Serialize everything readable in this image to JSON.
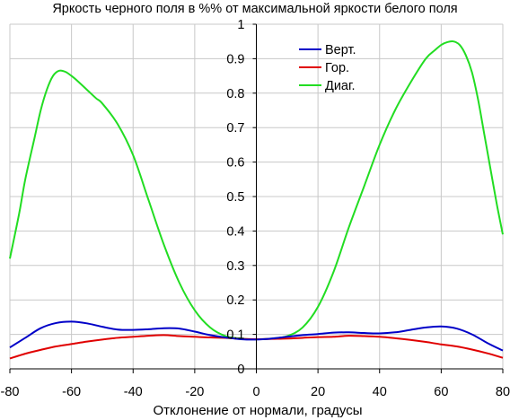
{
  "chart_data": {
    "type": "line",
    "title": "Яркость черного поля в %% от максимальной яркости белого поля",
    "xlabel": "Отклонение от нормали, градусы",
    "ylabel": "",
    "xlim": [
      -80,
      80
    ],
    "ylim": [
      0,
      1
    ],
    "x_ticks": [
      "-80",
      "-60",
      "-40",
      "-20",
      "0",
      "20",
      "40",
      "60",
      "80"
    ],
    "y_ticks": [
      "0",
      "0.1",
      "0.2",
      "0.3",
      "0.4",
      "0.5",
      "0.6",
      "0.7",
      "0.8",
      "0.9",
      "1"
    ],
    "grid": true,
    "legend": "top-center",
    "series": [
      {
        "name": "Верт.",
        "color": "#0000c8",
        "x": [
          -80,
          -75,
          -70,
          -65,
          -60,
          -55,
          -50,
          -45,
          -40,
          -35,
          -30,
          -25,
          -20,
          -15,
          -10,
          -5,
          0,
          5,
          10,
          15,
          20,
          25,
          30,
          35,
          40,
          45,
          50,
          55,
          60,
          65,
          70,
          75,
          80
        ],
        "y": [
          0.062,
          0.09,
          0.118,
          0.133,
          0.137,
          0.132,
          0.122,
          0.114,
          0.113,
          0.115,
          0.118,
          0.117,
          0.108,
          0.098,
          0.091,
          0.086,
          0.085,
          0.088,
          0.093,
          0.098,
          0.101,
          0.105,
          0.106,
          0.104,
          0.103,
          0.106,
          0.113,
          0.12,
          0.123,
          0.117,
          0.1,
          0.075,
          0.053
        ]
      },
      {
        "name": "Гор.",
        "color": "#e00000",
        "x": [
          -80,
          -75,
          -70,
          -65,
          -60,
          -55,
          -50,
          -45,
          -40,
          -35,
          -30,
          -25,
          -20,
          -15,
          -10,
          -5,
          0,
          5,
          10,
          15,
          20,
          25,
          30,
          35,
          40,
          45,
          50,
          55,
          60,
          65,
          70,
          75,
          80
        ],
        "y": [
          0.03,
          0.044,
          0.055,
          0.065,
          0.072,
          0.079,
          0.085,
          0.09,
          0.093,
          0.096,
          0.098,
          0.095,
          0.093,
          0.091,
          0.09,
          0.087,
          0.086,
          0.087,
          0.088,
          0.09,
          0.092,
          0.093,
          0.096,
          0.095,
          0.093,
          0.089,
          0.084,
          0.078,
          0.071,
          0.065,
          0.056,
          0.045,
          0.032
        ]
      },
      {
        "name": "Диаг.",
        "color": "#22dd22",
        "x": [
          -80,
          -77,
          -75,
          -72,
          -70,
          -68,
          -66,
          -64,
          -62,
          -60,
          -58,
          -55,
          -52,
          -50,
          -45,
          -40,
          -35,
          -30,
          -25,
          -20,
          -15,
          -10,
          -5,
          0,
          5,
          10,
          15,
          20,
          25,
          30,
          35,
          40,
          45,
          50,
          55,
          58,
          60,
          62,
          64,
          66,
          68,
          70,
          72,
          74,
          76,
          78,
          80
        ],
        "y": [
          0.32,
          0.45,
          0.55,
          0.67,
          0.75,
          0.81,
          0.85,
          0.865,
          0.862,
          0.85,
          0.835,
          0.81,
          0.785,
          0.77,
          0.71,
          0.62,
          0.49,
          0.36,
          0.25,
          0.17,
          0.12,
          0.095,
          0.088,
          0.086,
          0.088,
          0.095,
          0.12,
          0.18,
          0.28,
          0.41,
          0.53,
          0.65,
          0.75,
          0.83,
          0.9,
          0.925,
          0.94,
          0.948,
          0.95,
          0.94,
          0.91,
          0.86,
          0.78,
          0.68,
          0.58,
          0.48,
          0.39
        ]
      }
    ]
  }
}
